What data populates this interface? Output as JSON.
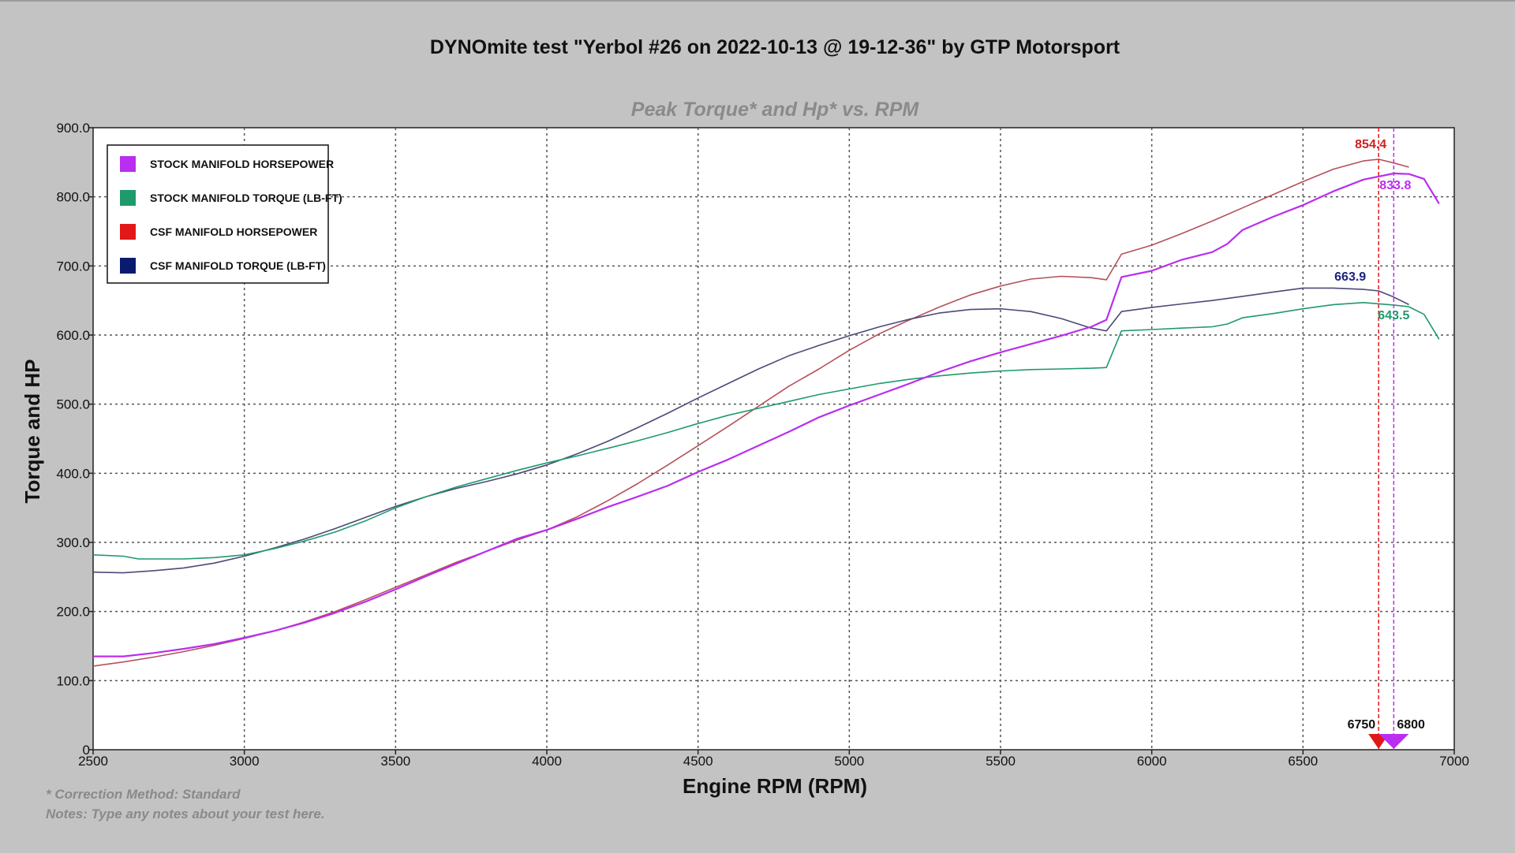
{
  "chart_data": {
    "type": "line",
    "title": "DYNOmite test \"Yerbol #26 on 2022-10-13 @ 19-12-36\" by GTP Motorsport",
    "subtitle": "Peak Torque* and Hp* vs. RPM",
    "xlabel": "Engine RPM (RPM)",
    "ylabel": "Torque and HP",
    "xlim": [
      2500,
      7000
    ],
    "ylim": [
      0,
      900
    ],
    "xticks": [
      "2500",
      "3000",
      "3500",
      "4000",
      "4500",
      "5000",
      "5500",
      "6000",
      "6500",
      "7000"
    ],
    "yticks": [
      "0",
      "100.0",
      "200.0",
      "300.0",
      "400.0",
      "500.0",
      "600.0",
      "700.0",
      "800.0",
      "900.0"
    ],
    "grid": true,
    "legend_position": "top-left",
    "series": [
      {
        "name": "STOCK MANIFOLD HORSEPOWER",
        "color": "#b92ef0",
        "points": [
          [
            2500,
            135
          ],
          [
            2600,
            135
          ],
          [
            2700,
            140
          ],
          [
            2800,
            146
          ],
          [
            2900,
            153
          ],
          [
            3000,
            162
          ],
          [
            3100,
            172
          ],
          [
            3200,
            184
          ],
          [
            3300,
            198
          ],
          [
            3400,
            214
          ],
          [
            3500,
            232
          ],
          [
            3600,
            251
          ],
          [
            3700,
            269
          ],
          [
            3800,
            287
          ],
          [
            3900,
            305
          ],
          [
            4000,
            318
          ],
          [
            4100,
            334
          ],
          [
            4200,
            351
          ],
          [
            4300,
            366
          ],
          [
            4400,
            382
          ],
          [
            4500,
            402
          ],
          [
            4600,
            420
          ],
          [
            4700,
            440
          ],
          [
            4800,
            460
          ],
          [
            4900,
            481
          ],
          [
            5000,
            498
          ],
          [
            5100,
            514
          ],
          [
            5200,
            530
          ],
          [
            5300,
            547
          ],
          [
            5400,
            562
          ],
          [
            5500,
            575
          ],
          [
            5600,
            587
          ],
          [
            5700,
            599
          ],
          [
            5800,
            612
          ],
          [
            5850,
            622
          ],
          [
            5900,
            684
          ],
          [
            6000,
            693
          ],
          [
            6100,
            709
          ],
          [
            6200,
            720
          ],
          [
            6250,
            732
          ],
          [
            6300,
            752
          ],
          [
            6400,
            771
          ],
          [
            6500,
            788
          ],
          [
            6600,
            808
          ],
          [
            6700,
            825
          ],
          [
            6800,
            833.8
          ],
          [
            6850,
            833
          ],
          [
            6900,
            826
          ],
          [
            6950,
            790
          ]
        ]
      },
      {
        "name": "STOCK MANIFOLD TORQUE (LB-FT)",
        "color": "#1f9a6a",
        "points": [
          [
            2500,
            282
          ],
          [
            2600,
            280
          ],
          [
            2650,
            276
          ],
          [
            2800,
            276
          ],
          [
            2900,
            278
          ],
          [
            3000,
            282
          ],
          [
            3100,
            291
          ],
          [
            3200,
            302
          ],
          [
            3300,
            315
          ],
          [
            3400,
            331
          ],
          [
            3500,
            350
          ],
          [
            3600,
            366
          ],
          [
            3700,
            380
          ],
          [
            3800,
            392
          ],
          [
            3900,
            404
          ],
          [
            4000,
            415
          ],
          [
            4100,
            425
          ],
          [
            4200,
            436
          ],
          [
            4300,
            447
          ],
          [
            4400,
            459
          ],
          [
            4500,
            472
          ],
          [
            4600,
            484
          ],
          [
            4700,
            494
          ],
          [
            4800,
            504
          ],
          [
            4900,
            514
          ],
          [
            5000,
            522
          ],
          [
            5100,
            530
          ],
          [
            5200,
            536
          ],
          [
            5300,
            541
          ],
          [
            5400,
            545
          ],
          [
            5500,
            548
          ],
          [
            5600,
            550
          ],
          [
            5700,
            551
          ],
          [
            5800,
            552
          ],
          [
            5850,
            553
          ],
          [
            5900,
            606
          ],
          [
            6000,
            608
          ],
          [
            6100,
            610
          ],
          [
            6200,
            612
          ],
          [
            6250,
            616
          ],
          [
            6300,
            625
          ],
          [
            6400,
            631
          ],
          [
            6500,
            638
          ],
          [
            6600,
            644
          ],
          [
            6700,
            647
          ],
          [
            6800,
            643.5
          ],
          [
            6850,
            641
          ],
          [
            6900,
            630
          ],
          [
            6950,
            594
          ]
        ]
      },
      {
        "name": "CSF MANIFOLD HORSEPOWER",
        "color": "#b5505a",
        "points": [
          [
            2500,
            121
          ],
          [
            2600,
            127
          ],
          [
            2700,
            134
          ],
          [
            2800,
            142
          ],
          [
            2900,
            151
          ],
          [
            3000,
            161
          ],
          [
            3100,
            172
          ],
          [
            3200,
            185
          ],
          [
            3300,
            200
          ],
          [
            3400,
            217
          ],
          [
            3500,
            235
          ],
          [
            3600,
            253
          ],
          [
            3700,
            271
          ],
          [
            3800,
            287
          ],
          [
            3900,
            303
          ],
          [
            4000,
            318
          ],
          [
            4100,
            337
          ],
          [
            4200,
            360
          ],
          [
            4300,
            385
          ],
          [
            4400,
            412
          ],
          [
            4500,
            440
          ],
          [
            4600,
            468
          ],
          [
            4700,
            497
          ],
          [
            4800,
            526
          ],
          [
            4900,
            551
          ],
          [
            5000,
            578
          ],
          [
            5100,
            602
          ],
          [
            5200,
            622
          ],
          [
            5300,
            641
          ],
          [
            5400,
            658
          ],
          [
            5500,
            671
          ],
          [
            5600,
            681
          ],
          [
            5700,
            685
          ],
          [
            5800,
            683
          ],
          [
            5850,
            680
          ],
          [
            5900,
            717
          ],
          [
            6000,
            730
          ],
          [
            6100,
            747
          ],
          [
            6200,
            765
          ],
          [
            6300,
            784
          ],
          [
            6400,
            803
          ],
          [
            6500,
            822
          ],
          [
            6600,
            840
          ],
          [
            6700,
            852
          ],
          [
            6750,
            854.4
          ],
          [
            6800,
            849
          ],
          [
            6850,
            843
          ]
        ]
      },
      {
        "name": "CSF MANIFOLD TORQUE (LB-FT)",
        "color": "#4a4a78",
        "points": [
          [
            2500,
            257
          ],
          [
            2600,
            256
          ],
          [
            2700,
            259
          ],
          [
            2800,
            263
          ],
          [
            2900,
            270
          ],
          [
            3000,
            280
          ],
          [
            3100,
            292
          ],
          [
            3200,
            305
          ],
          [
            3300,
            320
          ],
          [
            3400,
            336
          ],
          [
            3500,
            352
          ],
          [
            3600,
            366
          ],
          [
            3700,
            378
          ],
          [
            3800,
            388
          ],
          [
            3900,
            399
          ],
          [
            4000,
            412
          ],
          [
            4100,
            428
          ],
          [
            4200,
            446
          ],
          [
            4300,
            466
          ],
          [
            4400,
            487
          ],
          [
            4500,
            509
          ],
          [
            4600,
            530
          ],
          [
            4700,
            551
          ],
          [
            4800,
            570
          ],
          [
            4900,
            585
          ],
          [
            5000,
            599
          ],
          [
            5100,
            612
          ],
          [
            5200,
            623
          ],
          [
            5300,
            632
          ],
          [
            5400,
            637
          ],
          [
            5500,
            638
          ],
          [
            5600,
            634
          ],
          [
            5700,
            624
          ],
          [
            5800,
            610
          ],
          [
            5850,
            606
          ],
          [
            5900,
            634
          ],
          [
            6000,
            640
          ],
          [
            6100,
            645
          ],
          [
            6200,
            650
          ],
          [
            6300,
            656
          ],
          [
            6400,
            662
          ],
          [
            6500,
            668
          ],
          [
            6600,
            668
          ],
          [
            6700,
            666
          ],
          [
            6750,
            663.9
          ],
          [
            6800,
            655
          ],
          [
            6850,
            644
          ]
        ]
      }
    ],
    "peaks": [
      {
        "label": "854.4",
        "color": "#d21e1e",
        "x": 6750,
        "y": 854.4
      },
      {
        "label": "833.8",
        "color": "#b92ef0",
        "x": 6800,
        "y": 833.8
      },
      {
        "label": "663.9",
        "color": "#1a237e",
        "x": 6750,
        "y": 663.9
      },
      {
        "label": "643.5",
        "color": "#1f9a6a",
        "x": 6800,
        "y": 643.5
      }
    ],
    "rpm_markers": [
      {
        "label": "6750",
        "x": 6750,
        "color": "#e01818"
      },
      {
        "label": "6800",
        "x": 6800,
        "color": "#b92ef0"
      }
    ],
    "legend_colors": [
      "#b92ef0",
      "#1f9a6a",
      "#e01818",
      "#0a1a6e"
    ]
  },
  "notes": {
    "correction": "* Correction Method: Standard",
    "notes": "Notes: Type any notes about your test here."
  }
}
